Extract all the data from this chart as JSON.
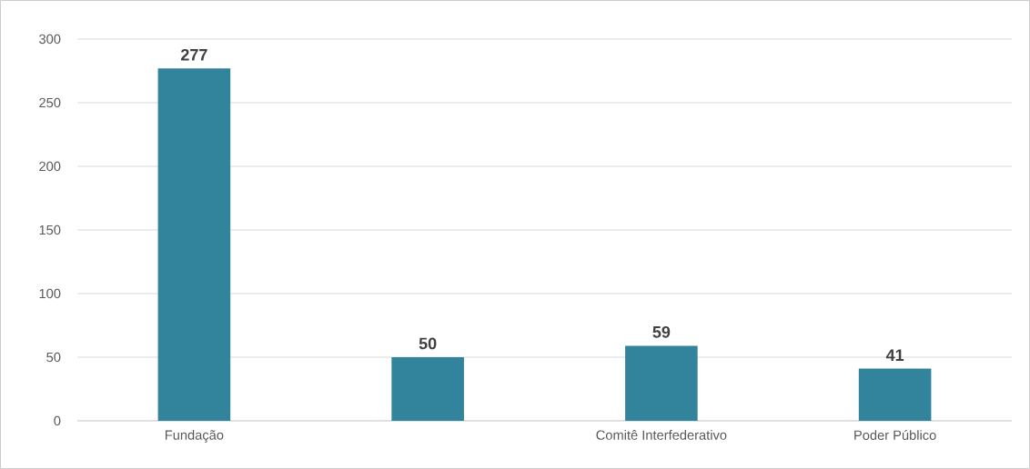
{
  "chart_data": {
    "type": "bar",
    "categories": [
      "Fundação",
      null,
      "Comitê Interfederativo",
      "Poder Público"
    ],
    "values": [
      277,
      50,
      59,
      41
    ],
    "color": "#31849b",
    "ylim": [
      0,
      300
    ],
    "yticks": [
      0,
      50,
      100,
      150,
      200,
      250,
      300
    ],
    "grid": "y",
    "data_labels": true
  }
}
